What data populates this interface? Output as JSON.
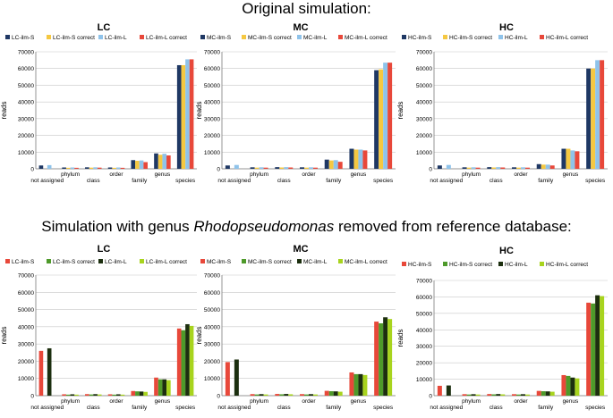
{
  "titles": {
    "top": "Original simulation:",
    "bottom_prefix": "Simulation with genus ",
    "bottom_genus": "Rhodopseudomonas",
    "bottom_suffix": " removed from reference database:"
  },
  "chart_data": [
    {
      "type": "bar",
      "title": "LC",
      "ylabel": "reads",
      "ylim": [
        0,
        70000
      ],
      "yticks": [
        0,
        10000,
        20000,
        30000,
        40000,
        50000,
        60000,
        70000
      ],
      "categories": [
        "not assigned",
        "phylum",
        "class",
        "order",
        "family",
        "genus",
        "species"
      ],
      "series": [
        {
          "name": "LC-ilm-S",
          "color": "#1f3864",
          "values": [
            2000,
            800,
            900,
            800,
            5200,
            9200,
            62000
          ]
        },
        {
          "name": "LC-ilm-S correct",
          "color": "#f5c842",
          "values": [
            0,
            600,
            700,
            600,
            4800,
            8400,
            62000
          ]
        },
        {
          "name": "LC-ilm-L",
          "color": "#8fc3ea",
          "values": [
            2200,
            800,
            900,
            800,
            5000,
            9000,
            65500
          ]
        },
        {
          "name": "LC-ilm-L correct",
          "color": "#e8483a",
          "values": [
            0,
            600,
            700,
            600,
            4000,
            8000,
            65500
          ]
        }
      ]
    },
    {
      "type": "bar",
      "title": "MC",
      "ylabel": "reads",
      "ylim": [
        0,
        70000
      ],
      "yticks": [
        0,
        10000,
        20000,
        30000,
        40000,
        50000,
        60000,
        70000
      ],
      "categories": [
        "not assigned",
        "phylum",
        "class",
        "order",
        "family",
        "genus",
        "species"
      ],
      "series": [
        {
          "name": "MC-ilm-S",
          "color": "#1f3864",
          "values": [
            2000,
            900,
            1000,
            900,
            5500,
            12000,
            59000
          ]
        },
        {
          "name": "MC-ilm-S correct",
          "color": "#f5c842",
          "values": [
            0,
            700,
            800,
            700,
            5000,
            11500,
            59500
          ]
        },
        {
          "name": "MC-ilm-L",
          "color": "#8fc3ea",
          "values": [
            2300,
            900,
            1000,
            900,
            5200,
            11500,
            63500
          ]
        },
        {
          "name": "MC-ilm-L correct",
          "color": "#e8483a",
          "values": [
            0,
            700,
            800,
            700,
            4200,
            11000,
            63500
          ]
        }
      ]
    },
    {
      "type": "bar",
      "title": "HC",
      "ylabel": "reads",
      "ylim": [
        0,
        70000
      ],
      "yticks": [
        0,
        10000,
        20000,
        30000,
        40000,
        50000,
        60000,
        70000
      ],
      "categories": [
        "not assigned",
        "phylum",
        "class",
        "order",
        "family",
        "genus",
        "species"
      ],
      "series": [
        {
          "name": "HC-ilm-S",
          "color": "#1f3864",
          "values": [
            2000,
            900,
            1000,
            900,
            2800,
            12000,
            60000
          ]
        },
        {
          "name": "HC-ilm-S correct",
          "color": "#f5c842",
          "values": [
            0,
            700,
            800,
            700,
            2500,
            12000,
            60000
          ]
        },
        {
          "name": "HC-ilm-L",
          "color": "#8fc3ea",
          "values": [
            2300,
            900,
            1000,
            900,
            2500,
            11000,
            65000
          ]
        },
        {
          "name": "HC-ilm-L correct",
          "color": "#e8483a",
          "values": [
            0,
            700,
            800,
            700,
            2000,
            10500,
            65000
          ]
        }
      ]
    },
    {
      "type": "bar",
      "title": "LC",
      "ylabel": "reads",
      "ylim": [
        0,
        70000
      ],
      "yticks": [
        0,
        10000,
        20000,
        30000,
        40000,
        50000,
        60000,
        70000
      ],
      "categories": [
        "not assigned",
        "phylum",
        "class",
        "order",
        "family",
        "genus",
        "species"
      ],
      "series": [
        {
          "name": "LC-ilm-S",
          "color": "#e8483a",
          "values": [
            26000,
            800,
            900,
            800,
            2700,
            10500,
            39000
          ]
        },
        {
          "name": "LC-ilm-S correct",
          "color": "#4e9a2a",
          "values": [
            0,
            600,
            700,
            600,
            2500,
            9500,
            38000
          ]
        },
        {
          "name": "LC-ilm-L",
          "color": "#1c2f0f",
          "values": [
            27500,
            800,
            900,
            800,
            2400,
            9500,
            41500
          ]
        },
        {
          "name": "LC-ilm-L correct",
          "color": "#a8d41e",
          "values": [
            0,
            600,
            700,
            600,
            2200,
            9000,
            40500
          ]
        }
      ]
    },
    {
      "type": "bar",
      "title": "MC",
      "ylabel": "reads",
      "ylim": [
        0,
        70000
      ],
      "yticks": [
        0,
        10000,
        20000,
        30000,
        40000,
        50000,
        60000,
        70000
      ],
      "categories": [
        "not assigned",
        "phylum",
        "class",
        "order",
        "family",
        "genus",
        "species"
      ],
      "series": [
        {
          "name": "MC-ilm-S",
          "color": "#e8483a",
          "values": [
            19500,
            900,
            1000,
            900,
            2800,
            13500,
            43000
          ]
        },
        {
          "name": "MC-ilm-S correct",
          "color": "#4e9a2a",
          "values": [
            0,
            700,
            800,
            700,
            2600,
            12500,
            42000
          ]
        },
        {
          "name": "MC-ilm-L",
          "color": "#1c2f0f",
          "values": [
            21000,
            900,
            1000,
            900,
            2500,
            12500,
            45500
          ]
        },
        {
          "name": "MC-ilm-L correct",
          "color": "#a8d41e",
          "values": [
            0,
            700,
            800,
            700,
            2300,
            12000,
            44500
          ]
        }
      ]
    },
    {
      "type": "bar",
      "title": "HC",
      "ylabel": "reads",
      "ylim": [
        0,
        70000
      ],
      "yticks": [
        0,
        10000,
        20000,
        30000,
        40000,
        50000,
        60000,
        70000
      ],
      "categories": [
        "not assigned",
        "phylum",
        "class",
        "order",
        "family",
        "genus",
        "species"
      ],
      "series": [
        {
          "name": "HC-ilm-S",
          "color": "#e8483a",
          "values": [
            6000,
            900,
            1000,
            900,
            2900,
            12500,
            56500
          ]
        },
        {
          "name": "HC-ilm-S correct",
          "color": "#4e9a2a",
          "values": [
            0,
            700,
            800,
            700,
            2700,
            12000,
            56000
          ]
        },
        {
          "name": "HC-ilm-L",
          "color": "#1c2f0f",
          "values": [
            6200,
            900,
            1000,
            900,
            2600,
            11000,
            61000
          ]
        },
        {
          "name": "HC-ilm-L correct",
          "color": "#a8d41e",
          "values": [
            0,
            700,
            800,
            700,
            2400,
            10500,
            60500
          ]
        }
      ]
    }
  ]
}
